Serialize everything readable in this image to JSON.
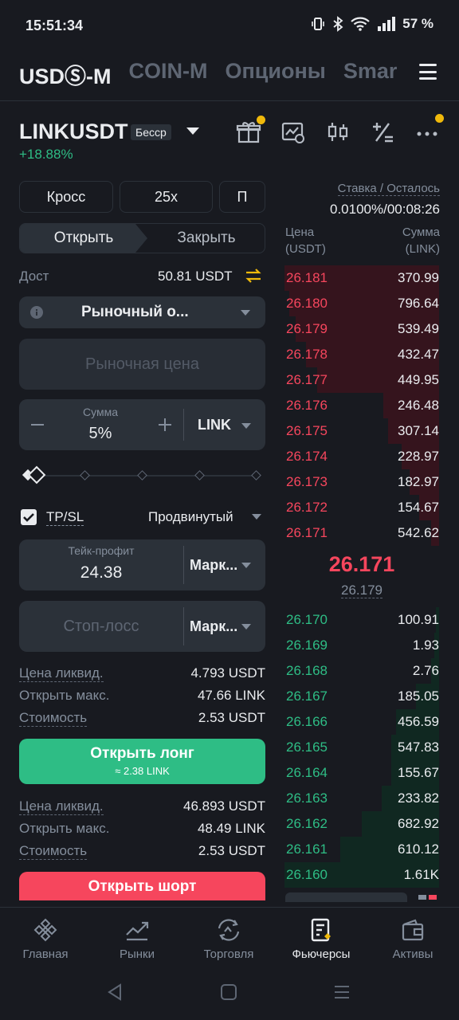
{
  "status_bar": {
    "time": "15:51:34",
    "battery": "57 %"
  },
  "tabs": [
    {
      "label": "USDⓈ-M",
      "active": true
    },
    {
      "label": "COIN-M",
      "active": false
    },
    {
      "label": "Опционы",
      "active": false
    },
    {
      "label": "Smar",
      "active": false
    }
  ],
  "symbol": {
    "name": "LINKUSDT",
    "badge": "Бесср",
    "change": "+18.88%"
  },
  "form": {
    "margin_mode": "Кросс",
    "leverage": "25x",
    "mode_short": "П",
    "open_tab": "Открыть",
    "close_tab": "Закрыть",
    "available_label": "Дост",
    "available_value": "50.81 USDT",
    "order_type": "Рыночный о...",
    "price_placeholder": "Рыночная цена",
    "amount_label": "Сумма",
    "amount_value": "5%",
    "amount_unit": "LINK",
    "slider_fraction": 0.0,
    "tpsl_label": "TP/SL",
    "tpsl_checked": true,
    "advanced_label": "Продвинутый",
    "take_profit_label": "Тейк-профит",
    "take_profit_value": "24.38",
    "take_profit_type": "Марк...",
    "stop_loss_placeholder": "Стоп-лосс",
    "stop_loss_type": "Марк..."
  },
  "long_info": [
    {
      "label": "Цена ликвид.",
      "value": "4.793 USDT"
    },
    {
      "label": "Открыть макс.",
      "value": "47.66 LINK"
    },
    {
      "label": "Стоимость",
      "value": "2.53 USDT"
    }
  ],
  "long_button": {
    "label": "Открыть лонг",
    "sub": "≈ 2.38 LINK"
  },
  "short_info": [
    {
      "label": "Цена ликвид.",
      "value": "46.893 USDT"
    },
    {
      "label": "Открыть макс.",
      "value": "48.49 LINK"
    },
    {
      "label": "Стоимость",
      "value": "2.53 USDT"
    }
  ],
  "short_button": {
    "label": "Открыть шорт"
  },
  "orderbook": {
    "funding_label": "Ставка / Осталось",
    "funding_value": "0.0100%/00:08:26",
    "price_header": "Цена",
    "price_unit": "(USDT)",
    "amount_header": "Сумма",
    "amount_unit": "(LINK)",
    "asks": [
      {
        "price": "26.181",
        "qty": "370.99",
        "depth": 1.0
      },
      {
        "price": "26.180",
        "qty": "796.64",
        "depth": 0.97
      },
      {
        "price": "26.179",
        "qty": "539.49",
        "depth": 0.93
      },
      {
        "price": "26.178",
        "qty": "432.47",
        "depth": 0.86
      },
      {
        "price": "26.177",
        "qty": "449.95",
        "depth": 0.79
      },
      {
        "price": "26.176",
        "qty": "246.48",
        "depth": 0.36
      },
      {
        "price": "26.175",
        "qty": "307.14",
        "depth": 0.33
      },
      {
        "price": "26.174",
        "qty": "228.97",
        "depth": 0.24
      },
      {
        "price": "26.173",
        "qty": "182.97",
        "depth": 0.19
      },
      {
        "price": "26.172",
        "qty": "154.67",
        "depth": 0.13
      },
      {
        "price": "26.171",
        "qty": "542.62",
        "depth": 0.05
      }
    ],
    "last_price": "26.171",
    "mark_price": "26.179",
    "bids": [
      {
        "price": "26.170",
        "qty": "100.91",
        "depth": 0.02
      },
      {
        "price": "26.169",
        "qty": "1.93",
        "depth": 0.03
      },
      {
        "price": "26.168",
        "qty": "2.76",
        "depth": 0.05
      },
      {
        "price": "26.167",
        "qty": "185.05",
        "depth": 0.15
      },
      {
        "price": "26.166",
        "qty": "456.59",
        "depth": 0.28
      },
      {
        "price": "26.165",
        "qty": "547.83",
        "depth": 0.31
      },
      {
        "price": "26.164",
        "qty": "155.67",
        "depth": 0.31
      },
      {
        "price": "26.163",
        "qty": "233.82",
        "depth": 0.37
      },
      {
        "price": "26.162",
        "qty": "682.92",
        "depth": 0.5
      },
      {
        "price": "26.161",
        "qty": "610.12",
        "depth": 0.64
      },
      {
        "price": "26.160",
        "qty": "1.61K",
        "depth": 1.0
      }
    ]
  },
  "bottom_nav": [
    {
      "label": "Главная",
      "icon": "binance-logo-icon",
      "active": false
    },
    {
      "label": "Рынки",
      "icon": "chart-icon",
      "active": false
    },
    {
      "label": "Торговля",
      "icon": "trade-icon",
      "active": false
    },
    {
      "label": "Фьючерсы",
      "icon": "futures-icon",
      "active": true
    },
    {
      "label": "Активы",
      "icon": "wallet-icon",
      "active": false
    }
  ],
  "colors": {
    "accent": "#f0b90b",
    "buy": "#2ebd85",
    "sell": "#f6465d",
    "bg": "#181a20"
  }
}
